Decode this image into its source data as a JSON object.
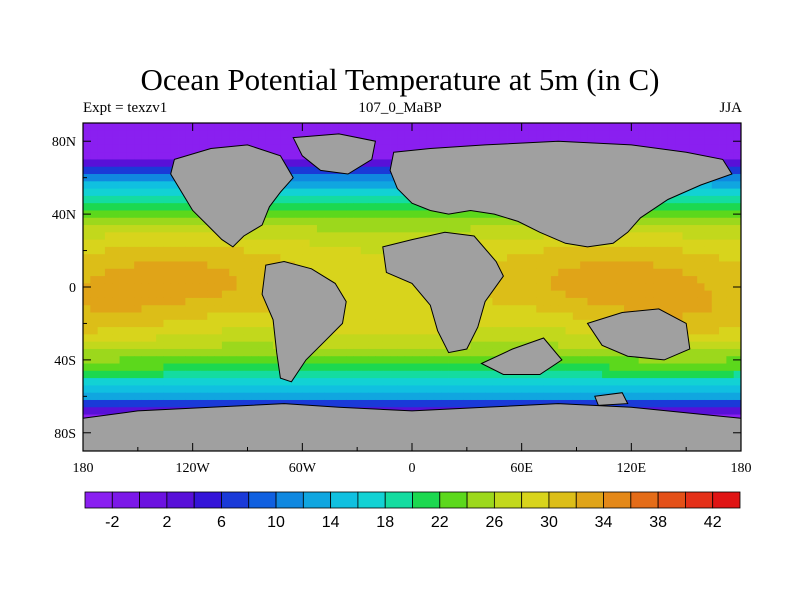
{
  "chart_data": {
    "type": "heatmap",
    "title": "Ocean Potential Temperature at 5m (in C)",
    "left_string": "Expt = texzv1",
    "center_string": "107_0_MaBP",
    "right_string": "JJA",
    "x_ticks": [
      {
        "value": -180,
        "label": "180"
      },
      {
        "value": -120,
        "label": "120W"
      },
      {
        "value": -60,
        "label": "60W"
      },
      {
        "value": 0,
        "label": "0"
      },
      {
        "value": 60,
        "label": "60E"
      },
      {
        "value": 120,
        "label": "120E"
      },
      {
        "value": 180,
        "label": "180"
      }
    ],
    "y_ticks": [
      {
        "value": 80,
        "label": "80N"
      },
      {
        "value": 40,
        "label": "40N"
      },
      {
        "value": 0,
        "label": "0"
      },
      {
        "value": -40,
        "label": "40S"
      },
      {
        "value": -80,
        "label": "80S"
      }
    ],
    "xlim": [
      -180,
      180
    ],
    "ylim": [
      -90,
      90
    ],
    "colorbar": {
      "levels": [
        -4,
        -2,
        0,
        2,
        4,
        6,
        8,
        10,
        12,
        14,
        16,
        18,
        20,
        22,
        24,
        26,
        28,
        30,
        32,
        34,
        36,
        38,
        40,
        42,
        44
      ],
      "labels": [
        {
          "value": -2,
          "label": "-2"
        },
        {
          "value": 2,
          "label": "2"
        },
        {
          "value": 6,
          "label": "6"
        },
        {
          "value": 10,
          "label": "10"
        },
        {
          "value": 14,
          "label": "14"
        },
        {
          "value": 18,
          "label": "18"
        },
        {
          "value": 22,
          "label": "22"
        },
        {
          "value": 26,
          "label": "26"
        },
        {
          "value": 30,
          "label": "30"
        },
        {
          "value": 34,
          "label": "34"
        },
        {
          "value": 38,
          "label": "38"
        },
        {
          "value": 42,
          "label": "42"
        }
      ],
      "colors": [
        "#8a1ff0",
        "#7c18e8",
        "#6c12e0",
        "#5810d8",
        "#3414d8",
        "#1a3ad8",
        "#1060e0",
        "#1088e0",
        "#10a6e0",
        "#10c0e0",
        "#12d2d4",
        "#14dca0",
        "#1cd850",
        "#5cd81c",
        "#9cd81c",
        "#c2d81c",
        "#d8d41c",
        "#dcbe18",
        "#e0a418",
        "#e48818",
        "#e46c18",
        "#e45018",
        "#e43018",
        "#e01414"
      ]
    },
    "land_color": "#a0a0a0",
    "field_description": "Sea-surface potential temperature in degrees C; cold (about -2) at high latitudes, warm (about 30-32) in tropical belt; gray = land mask"
  }
}
